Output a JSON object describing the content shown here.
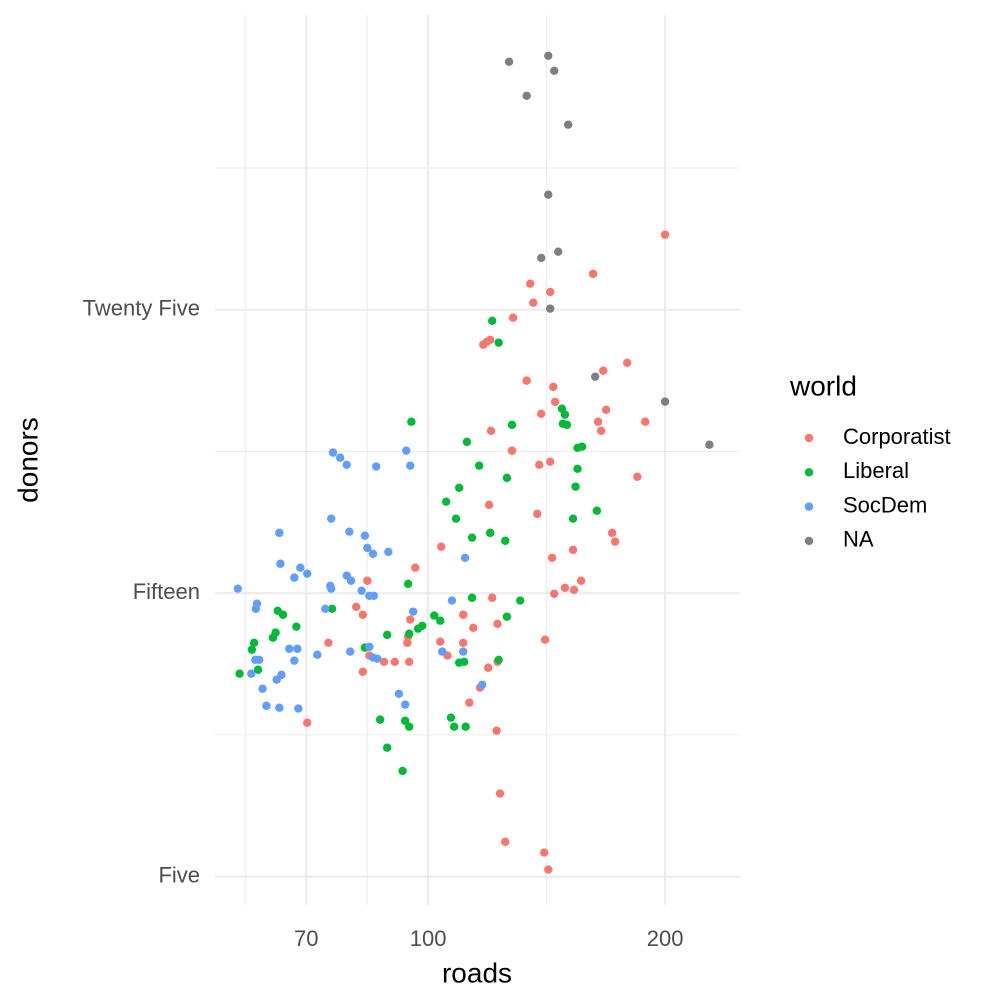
{
  "chart_data": {
    "type": "scatter",
    "x_label": "roads",
    "y_label": "donors",
    "legend_title": "world",
    "log_x": true,
    "grid": true,
    "legend_position": "right",
    "xlim": [
      53.6,
      249
    ],
    "ylim": [
      4,
      35.4
    ],
    "xticks": [
      70,
      100,
      200
    ],
    "yticks": [
      {
        "value": 5,
        "label": "Five"
      },
      {
        "value": 15,
        "label": "Fifteen"
      },
      {
        "value": 25,
        "label": "Twenty Five"
      }
    ],
    "series": [
      {
        "name": "Corporatist",
        "color": "#F8766D",
        "x": [
          200,
          162.0,
          134.8,
          142.9,
          136.0,
          128.2,
          118.7,
          117.5,
          119.9,
          179.0,
          166.9,
          133.4,
          144.2,
          145.0,
          168.3,
          139.2,
          188.7,
          164.4,
          165.9,
          120.2,
          127.8,
          142.9,
          138.4,
          184.4,
          119.5,
          137.6,
          171.3,
          119.9,
          172.8,
          103.9,
          152.8,
          143.7,
          96.3,
          156.4,
          83.7,
          149.2,
          153.2,
          144.6,
          120.6,
          81.0,
          82.6,
          110.8,
          94.9,
          122.5,
          114.1,
          140.8,
          94.3,
          94.1,
          74.7,
          103.6,
          110.8,
          84.2,
          105.8,
          87.9,
          90.7,
          94.6,
          122.5,
          119.2,
          82.6,
          116.4,
          112.8,
          70.2,
          122.2,
          123.4,
          125.3,
          140.4,
          142.1
        ],
        "values": [
          27.65,
          26.27,
          25.92,
          25.63,
          25.25,
          24.72,
          23.87,
          23.77,
          23.94,
          23.13,
          22.85,
          22.5,
          22.28,
          21.75,
          21.47,
          21.33,
          21.05,
          21.05,
          20.73,
          20.73,
          20.03,
          19.64,
          19.53,
          19.11,
          18.12,
          17.8,
          17.13,
          17.13,
          16.82,
          16.64,
          16.53,
          16.25,
          15.9,
          15.44,
          15.44,
          15.19,
          15.12,
          14.98,
          14.84,
          14.52,
          14.24,
          14.24,
          14.07,
          13.92,
          13.78,
          13.36,
          13.47,
          13.25,
          13.25,
          13.29,
          13.25,
          12.8,
          12.8,
          12.58,
          12.58,
          12.58,
          12.58,
          12.37,
          12.23,
          11.67,
          11.14,
          10.43,
          10.15,
          7.93,
          6.23,
          5.85,
          5.25
        ]
      },
      {
        "name": "Liberal",
        "color": "#00BA38",
        "x": [
          120.6,
          122.9,
          95.2,
          147.9,
          149.2,
          150.1,
          148.3,
          127.8,
          156.9,
          154.8,
          112.0,
          116.1,
          154.8,
          125.9,
          109.5,
          153.9,
          105.4,
          108.5,
          163.8,
          152.8,
          119.9,
          113.7,
          125.3,
          94.3,
          113.7,
          130.9,
          75.5,
          64.4,
          65.4,
          101.8,
          103.6,
          125.9,
          97.1,
          68.0,
          98.3,
          64.0,
          63.5,
          60.1,
          94.6,
          88.7,
          83.1,
          59.7,
          111.1,
          122.9,
          109.5,
          60.8,
          57.6,
          86.9,
          106.9,
          93.5,
          94.6,
          107.9,
          111.6,
          88.7,
          92.8
        ],
        "values": [
          24.61,
          23.84,
          21.05,
          21.51,
          21.3,
          20.94,
          20.98,
          20.94,
          20.17,
          20.13,
          20.34,
          19.5,
          19.39,
          19.07,
          18.72,
          18.76,
          18.23,
          17.63,
          17.91,
          17.63,
          17.13,
          16.96,
          16.85,
          15.33,
          14.84,
          14.74,
          14.45,
          14.38,
          14.24,
          14.21,
          14.03,
          14.17,
          13.75,
          13.82,
          13.85,
          13.61,
          13.43,
          13.25,
          13.57,
          13.53,
          13.08,
          13.01,
          12.58,
          12.65,
          12.55,
          12.3,
          12.16,
          10.54,
          10.61,
          10.5,
          10.29,
          10.29,
          10.29,
          9.55,
          8.73
        ]
      },
      {
        "name": "SocDem",
        "color": "#619CFF",
        "x": [
          75.7,
          77.3,
          78.8,
          85.9,
          93.8,
          94.9,
          64.7,
          75.3,
          79.4,
          83.1,
          83.7,
          85.1,
          89.0,
          64.9,
          68.8,
          67.6,
          78.8,
          79.8,
          111.4,
          70.2,
          75.1,
          75.3,
          82.3,
          84.2,
          85.3,
          57.3,
          60.6,
          60.4,
          74.0,
          95.7,
          107.2,
          66.6,
          68.2,
          84.2,
          79.6,
          60.3,
          61.0,
          67.6,
          72.3,
          85.1,
          86.2,
          104.2,
          110.8,
          59.6,
          65.1,
          64.2,
          61.6,
          91.8,
          117.1,
          62.3,
          64.7,
          68.4,
          93.5
        ],
        "values": [
          19.96,
          19.78,
          19.53,
          19.47,
          20.03,
          19.5,
          17.13,
          17.63,
          17.17,
          17.03,
          16.6,
          16.39,
          16.46,
          16.04,
          15.9,
          15.55,
          15.62,
          15.44,
          16.25,
          15.69,
          15.26,
          15.16,
          15.09,
          14.91,
          14.91,
          15.16,
          14.63,
          14.45,
          14.45,
          14.35,
          14.74,
          13.04,
          13.04,
          13.11,
          12.94,
          12.65,
          12.65,
          12.62,
          12.83,
          12.73,
          12.69,
          12.94,
          12.94,
          12.16,
          12.12,
          11.95,
          11.63,
          11.45,
          11.77,
          11.03,
          10.96,
          10.93,
          11.07
        ]
      },
      {
        "name": "NA",
        "color": "#7F7F7F",
        "x": [
          126.7,
          142.1,
          144.6,
          133.4,
          150.6,
          142.1,
          146.3,
          139.2,
          142.9,
          163.0,
          200,
          227.7
        ],
        "values": [
          33.75,
          33.96,
          33.43,
          32.55,
          31.53,
          29.06,
          27.05,
          26.83,
          25.04,
          22.64,
          21.76,
          20.24
        ]
      }
    ]
  }
}
